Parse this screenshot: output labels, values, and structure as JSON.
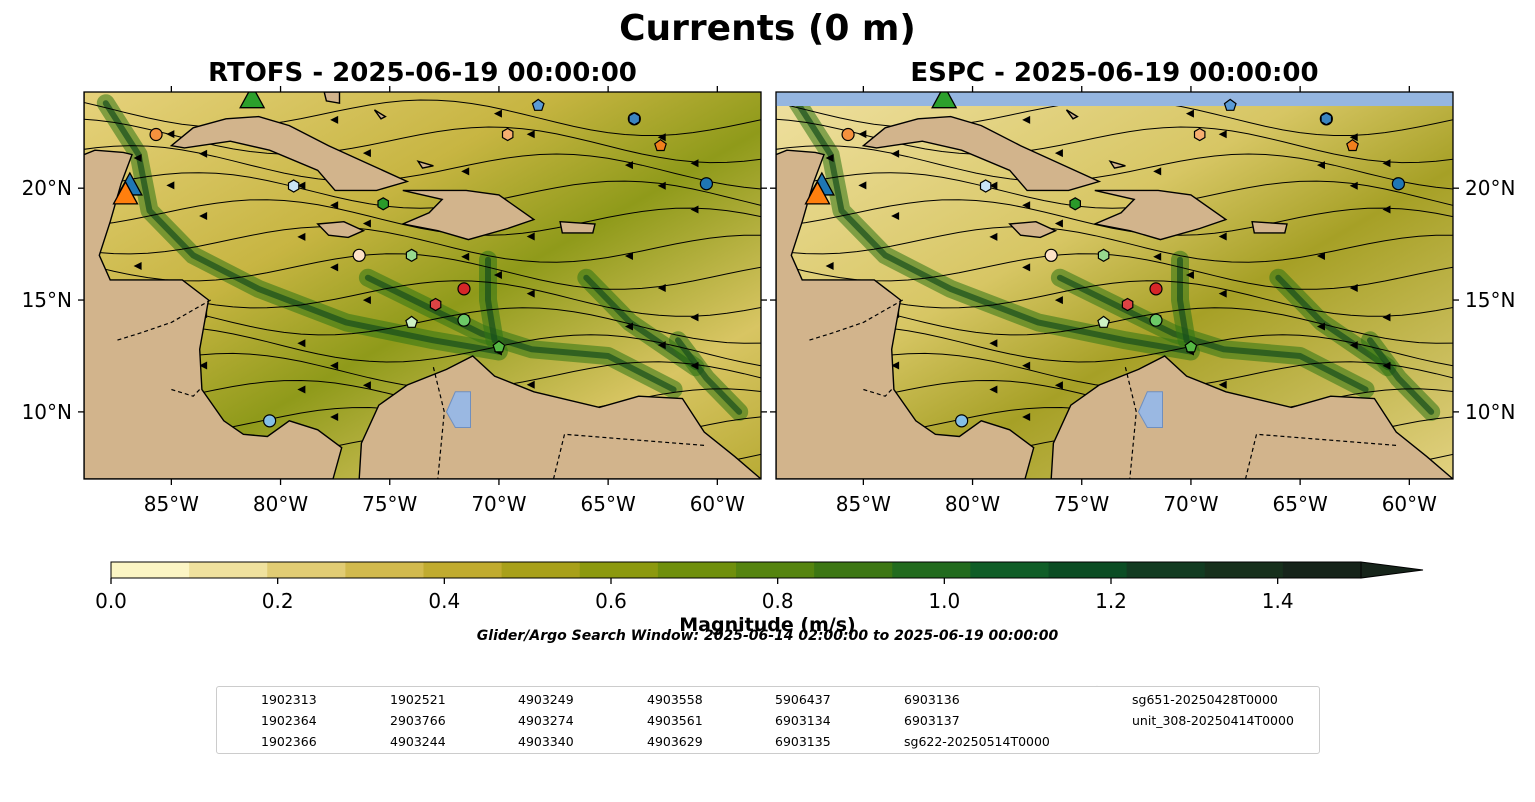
{
  "figure": {
    "title": "Currents (0 m)",
    "search_window": "Glider/Argo Search Window: 2025-06-14 02:00:00 to 2025-06-19 00:00:00"
  },
  "panels": [
    {
      "title": "RTOFS - 2025-06-19 00:00:00"
    },
    {
      "title": "ESPC - 2025-06-19 00:00:00"
    }
  ],
  "map_extent": {
    "lon": [
      -89.0,
      -58.0
    ],
    "lat": [
      7.0,
      24.3
    ]
  },
  "lat_ticks": [
    {
      "value": 10,
      "label": "10°N"
    },
    {
      "value": 15,
      "label": "15°N"
    },
    {
      "value": 20,
      "label": "20°N"
    }
  ],
  "lon_ticks": [
    {
      "value": -85,
      "label": "85°W"
    },
    {
      "value": -80,
      "label": "80°W"
    },
    {
      "value": -75,
      "label": "75°W"
    },
    {
      "value": -70,
      "label": "70°W"
    },
    {
      "value": -65,
      "label": "65°W"
    },
    {
      "value": -60,
      "label": "60°W"
    }
  ],
  "colorbar": {
    "label": "Magnitude (m/s)",
    "min": 0.0,
    "max": 1.5,
    "extend": "max",
    "tick_labels": [
      "0.0",
      "0.2",
      "0.4",
      "0.6",
      "0.8",
      "1.0",
      "1.2",
      "1.4"
    ],
    "colors": [
      "#fbf5c4",
      "#efe19e",
      "#e1cc74",
      "#d2ba4e",
      "#c0ab2f",
      "#a8a01a",
      "#8c990e",
      "#6f8f0c",
      "#55840f",
      "#3c7613",
      "#226b1e",
      "#105e28",
      "#0b4d24",
      "#123b21",
      "#17301c",
      "#16241a"
    ]
  },
  "chart_data": {
    "type": "scatter",
    "title": "Currents (0 m)",
    "xlabel": "",
    "ylabel": "",
    "xlim": [
      -89.0,
      -58.0
    ],
    "ylim": [
      7.0,
      24.3
    ],
    "series": [
      {
        "name": "1902313",
        "marker": "circle",
        "color": "#1f77b4",
        "points": [
          [
            -60.5,
            20.2
          ],
          [
            -63.8,
            23.1
          ]
        ]
      },
      {
        "name": "1902364",
        "marker": "hexagon",
        "color": "#3b84c0",
        "points": [
          [
            -63.8,
            23.1
          ]
        ]
      },
      {
        "name": "1902366",
        "marker": "pentagon",
        "color": "#5b9bd6",
        "points": [
          [
            -68.2,
            23.7
          ]
        ]
      },
      {
        "name": "1902521",
        "marker": "circle",
        "color": "#84bfe6",
        "points": [
          [
            -80.5,
            9.6
          ]
        ]
      },
      {
        "name": "2903766",
        "marker": "hexagon",
        "color": "#c9e3f6",
        "points": [
          [
            -79.4,
            20.1
          ]
        ]
      },
      {
        "name": "4903244",
        "marker": "pentagon",
        "color": "#f07f1d",
        "points": [
          [
            -62.6,
            21.9
          ]
        ]
      },
      {
        "name": "4903249",
        "marker": "circle",
        "color": "#f5913e",
        "points": [
          [
            -85.7,
            22.4
          ]
        ]
      },
      {
        "name": "4903274",
        "marker": "hexagon",
        "color": "#f6ae70",
        "points": [
          [
            -69.6,
            22.4
          ]
        ]
      },
      {
        "name": "4903340",
        "marker": "pentagon",
        "color": "#fbd0a6",
        "points": []
      },
      {
        "name": "4903558",
        "marker": "circle",
        "color": "#fde2c7",
        "points": [
          [
            -76.4,
            17.0
          ]
        ]
      },
      {
        "name": "4903561",
        "marker": "hexagon",
        "color": "#2a9a2a",
        "points": [
          [
            -75.3,
            19.3
          ]
        ]
      },
      {
        "name": "4903629",
        "marker": "pentagon",
        "color": "#56b944",
        "points": [
          [
            -70.0,
            12.9
          ]
        ]
      },
      {
        "name": "5906437",
        "marker": "circle",
        "color": "#6cc867",
        "points": [
          [
            -71.6,
            14.1
          ]
        ]
      },
      {
        "name": "6903134",
        "marker": "hexagon",
        "color": "#97d98e",
        "points": [
          [
            -74.0,
            17.0
          ]
        ]
      },
      {
        "name": "6903135",
        "marker": "pentagon",
        "color": "#cdf1c4",
        "points": [
          [
            -74.0,
            14.0
          ]
        ]
      },
      {
        "name": "6903136",
        "marker": "circle",
        "color": "#d62728",
        "points": [
          [
            -71.6,
            15.5
          ]
        ]
      },
      {
        "name": "6903137",
        "marker": "hexagon",
        "color": "#dc4344",
        "points": [
          [
            -72.9,
            14.8
          ]
        ]
      },
      {
        "name": "sg622-20250514T0000",
        "marker": "triangle",
        "color": "#1f77b4",
        "points": [
          [
            -86.9,
            20.1
          ]
        ]
      },
      {
        "name": "sg651-20250428T0000",
        "marker": "triangle",
        "color": "#ff7f0e",
        "points": [
          [
            -87.1,
            19.7
          ]
        ]
      },
      {
        "name": "unit_308-20250414T0000",
        "marker": "triangle",
        "color": "#2ca02c",
        "points": [
          [
            -81.3,
            24.0
          ]
        ]
      }
    ]
  },
  "legend_items": [
    {
      "label": "1902313",
      "marker": "circle",
      "color": "#1f77b4"
    },
    {
      "label": "1902364",
      "marker": "hexagon",
      "color": "#3b84c0"
    },
    {
      "label": "1902366",
      "marker": "pentagon",
      "color": "#5b9bd6"
    },
    {
      "label": "1902521",
      "marker": "circle",
      "color": "#84bfe6"
    },
    {
      "label": "2903766",
      "marker": "hexagon",
      "color": "#c9e3f6"
    },
    {
      "label": "4903244",
      "marker": "pentagon",
      "color": "#f07f1d"
    },
    {
      "label": "4903249",
      "marker": "circle",
      "color": "#f5913e"
    },
    {
      "label": "4903274",
      "marker": "hexagon",
      "color": "#f6ae70"
    },
    {
      "label": "4903340",
      "marker": "pentagon",
      "color": "#fbd0a6"
    },
    {
      "label": "4903558",
      "marker": "circle",
      "color": "#fde2c7"
    },
    {
      "label": "4903561",
      "marker": "hexagon",
      "color": "#2a9a2a"
    },
    {
      "label": "4903629",
      "marker": "pentagon",
      "color": "#56b944"
    },
    {
      "label": "5906437",
      "marker": "circle",
      "color": "#6cc867"
    },
    {
      "label": "6903134",
      "marker": "hexagon",
      "color": "#97d98e"
    },
    {
      "label": "6903135",
      "marker": "pentagon",
      "color": "#cdf1c4"
    },
    {
      "label": "6903136",
      "marker": "circle",
      "color": "#d62728"
    },
    {
      "label": "6903137",
      "marker": "hexagon",
      "color": "#dc4344"
    },
    {
      "label": "sg622-20250514T0000",
      "marker": "triangle",
      "color": "#1f77b4"
    },
    {
      "label": "sg651-20250428T0000",
      "marker": "triangle",
      "color": "#ff7f0e"
    },
    {
      "label": "unit_308-20250414T0000",
      "marker": "triangle",
      "color": "#2ca02c"
    }
  ]
}
